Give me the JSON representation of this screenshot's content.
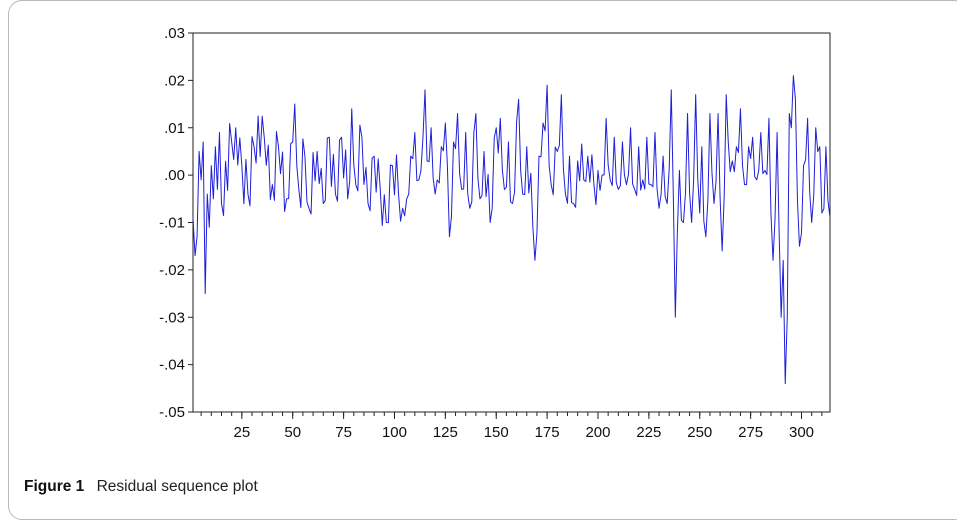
{
  "figure": {
    "label": "Figure 1",
    "caption": "Residual sequence plot"
  },
  "colors": {
    "series": "#1f1fd8",
    "axis": "#222222"
  },
  "chart_data": {
    "type": "line",
    "title": "",
    "xlabel": "",
    "ylabel": "",
    "xlim": [
      1,
      314
    ],
    "ylim": [
      -0.05,
      0.03
    ],
    "grid": false,
    "legend": "none",
    "y_ticks": [
      0.03,
      0.02,
      0.01,
      0.0,
      -0.01,
      -0.02,
      -0.03,
      -0.04,
      -0.05
    ],
    "y_tick_labels": [
      ".03",
      ".02",
      ".01",
      ".00",
      "-.01",
      "-.02",
      "-.03",
      "-.04",
      "-.05"
    ],
    "x_ticks": [
      25,
      50,
      75,
      100,
      125,
      150,
      175,
      200,
      225,
      250,
      275,
      300
    ],
    "x_tick_labels": [
      "25",
      "50",
      "75",
      "100",
      "125",
      "150",
      "175",
      "200",
      "225",
      "250",
      "275",
      "300"
    ],
    "x_minor_step": 5,
    "series": [
      {
        "name": "",
        "anchors": [
          [
            1,
            -0.009
          ],
          [
            2,
            -0.017
          ],
          [
            3,
            -0.013
          ],
          [
            4,
            0.005
          ],
          [
            5,
            -0.001
          ],
          [
            6,
            0.007
          ],
          [
            7,
            -0.025
          ],
          [
            8,
            -0.004
          ],
          [
            9,
            -0.011
          ],
          [
            10,
            0.002
          ],
          [
            11,
            -0.005
          ],
          [
            12,
            0.006
          ],
          [
            13,
            -0.003
          ],
          [
            14,
            0.009
          ],
          [
            15,
            -0.006
          ],
          [
            20,
            0.007
          ],
          [
            22,
            0.01
          ],
          [
            25,
            0.002
          ],
          [
            28,
            -0.004
          ],
          [
            31,
            0.006
          ],
          [
            36,
            0.008
          ],
          [
            40,
            -0.002
          ],
          [
            43,
            0.006
          ],
          [
            47,
            -0.005
          ],
          [
            50,
            0.007
          ],
          [
            51,
            0.015
          ],
          [
            53,
            -0.003
          ],
          [
            56,
            0.004
          ],
          [
            58,
            -0.007
          ],
          [
            62,
            0.005
          ],
          [
            65,
            -0.006
          ],
          [
            68,
            0.008
          ],
          [
            71,
            -0.004
          ],
          [
            74,
            0.008
          ],
          [
            77,
            -0.005
          ],
          [
            79,
            0.014
          ],
          [
            81,
            -0.002
          ],
          [
            84,
            0.008
          ],
          [
            87,
            -0.006
          ],
          [
            90,
            0.004
          ],
          [
            93,
            -0.003
          ],
          [
            96,
            -0.01
          ],
          [
            99,
            0.002
          ],
          [
            102,
            -0.004
          ],
          [
            104,
            -0.007
          ],
          [
            106,
            -0.005
          ],
          [
            108,
            0.004
          ],
          [
            110,
            0.009
          ],
          [
            112,
            -0.001
          ],
          [
            114,
            0.008
          ],
          [
            115,
            0.018
          ],
          [
            116,
            0.003
          ],
          [
            118,
            0.01
          ],
          [
            120,
            -0.004
          ],
          [
            121,
            -0.001
          ],
          [
            123,
            0.006
          ],
          [
            125,
            0.011
          ],
          [
            126,
            0.002
          ],
          [
            127,
            -0.013
          ],
          [
            129,
            0.007
          ],
          [
            131,
            0.013
          ],
          [
            133,
            -0.003
          ],
          [
            135,
            0.009
          ],
          [
            137,
            -0.007
          ],
          [
            140,
            0.013
          ],
          [
            142,
            -0.005
          ],
          [
            144,
            0.005
          ],
          [
            147,
            -0.01
          ],
          [
            150,
            0.01
          ],
          [
            152,
            0.012
          ],
          [
            154,
            -0.003
          ],
          [
            156,
            0.007
          ],
          [
            158,
            -0.006
          ],
          [
            161,
            0.016
          ],
          [
            163,
            -0.004
          ],
          [
            165,
            0.006
          ],
          [
            168,
            -0.011
          ],
          [
            169,
            -0.018
          ],
          [
            171,
            0.004
          ],
          [
            173,
            0.011
          ],
          [
            175,
            0.019
          ],
          [
            177,
            -0.002
          ],
          [
            180,
            0.005
          ],
          [
            182,
            0.017
          ],
          [
            184,
            -0.004
          ],
          [
            186,
            0.004
          ],
          [
            188,
            -0.006
          ],
          [
            190,
            0.003
          ],
          [
            193,
            -0.001
          ],
          [
            195,
            0.004
          ],
          [
            198,
            -0.002
          ],
          [
            200,
            0.001
          ],
          [
            202,
            0.0
          ],
          [
            204,
            0.012
          ],
          [
            206,
            -0.001
          ],
          [
            208,
            0.008
          ],
          [
            210,
            -0.003
          ],
          [
            212,
            0.007
          ],
          [
            214,
            -0.002
          ],
          [
            216,
            0.01
          ],
          [
            218,
            -0.003
          ],
          [
            220,
            0.006
          ],
          [
            222,
            -0.001
          ],
          [
            224,
            0.008
          ],
          [
            226,
            -0.002
          ],
          [
            228,
            0.009
          ],
          [
            230,
            -0.007
          ],
          [
            232,
            0.004
          ],
          [
            234,
            -0.006
          ],
          [
            236,
            0.018
          ],
          [
            237,
            -0.004
          ],
          [
            238,
            -0.03
          ],
          [
            239,
            -0.012
          ],
          [
            240,
            0.001
          ],
          [
            242,
            -0.01
          ],
          [
            244,
            0.013
          ],
          [
            246,
            -0.01
          ],
          [
            248,
            0.017
          ],
          [
            250,
            -0.008
          ],
          [
            251,
            0.006
          ],
          [
            253,
            -0.013
          ],
          [
            255,
            0.013
          ],
          [
            257,
            -0.006
          ],
          [
            259,
            0.013
          ],
          [
            261,
            -0.016
          ],
          [
            263,
            0.017
          ],
          [
            264,
            0.007
          ],
          [
            266,
            0.003
          ],
          [
            268,
            0.006
          ],
          [
            270,
            0.014
          ],
          [
            272,
            -0.002
          ],
          [
            274,
            0.006
          ],
          [
            276,
            0.008
          ],
          [
            278,
            -0.001
          ],
          [
            280,
            0.009
          ],
          [
            282,
            0.001
          ],
          [
            284,
            0.012
          ],
          [
            286,
            -0.018
          ],
          [
            288,
            0.009
          ],
          [
            289,
            -0.012
          ],
          [
            290,
            -0.03
          ],
          [
            291,
            -0.018
          ],
          [
            292,
            -0.044
          ],
          [
            293,
            -0.03
          ],
          [
            294,
            0.013
          ],
          [
            295,
            0.01
          ],
          [
            296,
            0.021
          ],
          [
            297,
            0.016
          ],
          [
            299,
            -0.015
          ],
          [
            301,
            0.002
          ],
          [
            303,
            0.012
          ],
          [
            305,
            -0.01
          ],
          [
            307,
            0.01
          ],
          [
            309,
            0.006
          ],
          [
            310,
            -0.008
          ],
          [
            312,
            0.006
          ],
          [
            314,
            -0.009
          ]
        ]
      }
    ]
  }
}
